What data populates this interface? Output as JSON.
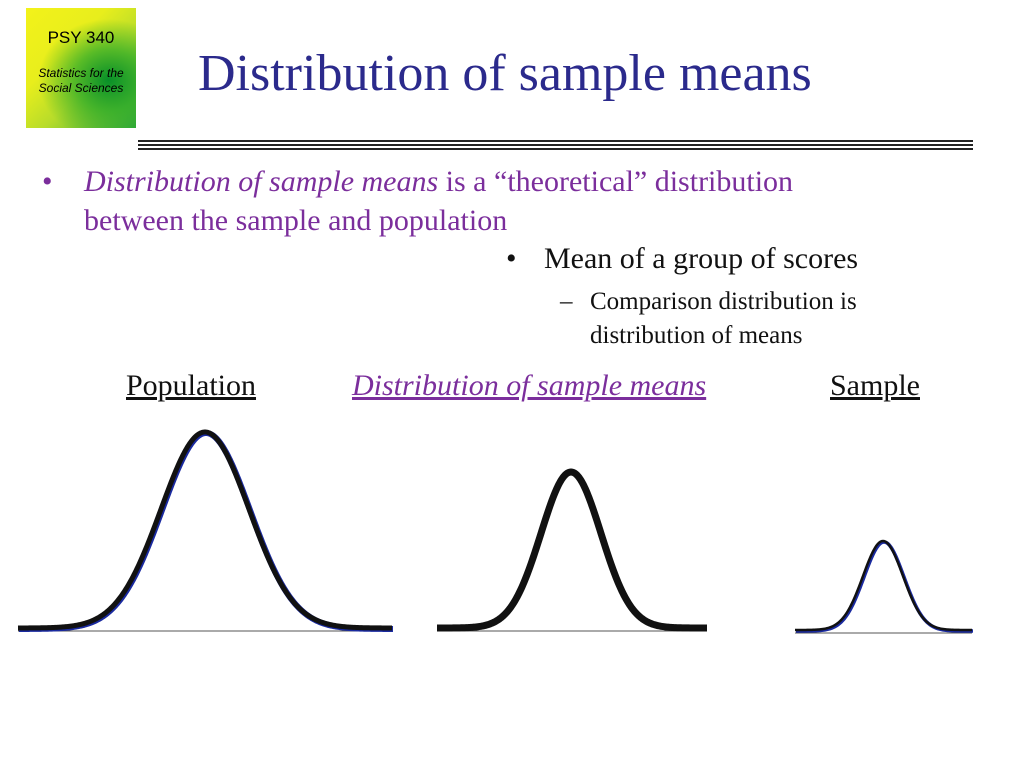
{
  "logo": {
    "course": "PSY 340",
    "subtitle_line1": "Statistics for the",
    "subtitle_line2": "Social Sciences"
  },
  "title": "Distribution of sample means",
  "bullets": {
    "main": {
      "marker": "•",
      "italic_part": "Distribution of sample means",
      "rest": " is a “theoretical” distribution",
      "line2": "between the sample and population"
    },
    "sub1": {
      "marker": "•",
      "text": "Mean of a group of scores"
    },
    "sub2": {
      "marker": "–",
      "line1": "Comparison distribution is",
      "line2": "distribution of means"
    }
  },
  "headings": {
    "population": "Population",
    "distribution": "Distribution of sample means",
    "sample": "Sample"
  },
  "colors": {
    "title": "#2b2a8c",
    "accent_purple": "#7b2e9c",
    "text": "#111111",
    "curve_stroke": "#111111",
    "curve_edge_blue": "#1a2aa0"
  },
  "curves": {
    "type": "normal",
    "items": [
      {
        "label": "Population",
        "relative_spread": "wide",
        "relative_height": "tall"
      },
      {
        "label": "Distribution of sample means",
        "relative_spread": "medium",
        "relative_height": "medium"
      },
      {
        "label": "Sample",
        "relative_spread": "narrow",
        "relative_height": "short"
      }
    ]
  }
}
